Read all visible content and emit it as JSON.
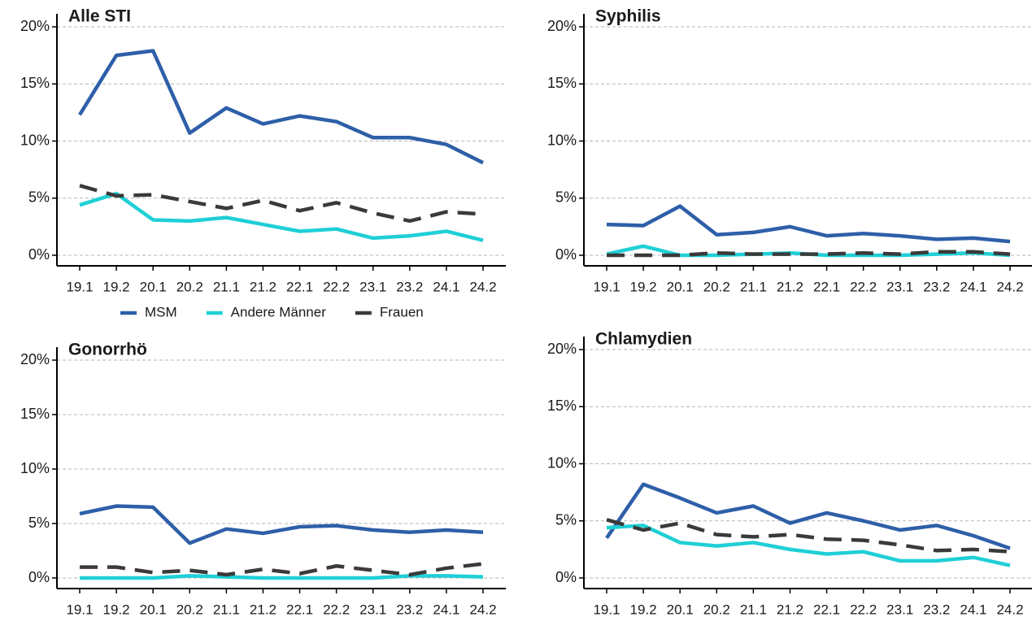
{
  "chart_data": [
    {
      "type": "line",
      "title": "Alle STI",
      "legend": "bottom",
      "categories": [
        "19.1",
        "19.2",
        "20.1",
        "20.2",
        "21.1",
        "21.2",
        "22.1",
        "22.2",
        "23.1",
        "23.2",
        "24.1",
        "24.2"
      ],
      "ylim": [
        0,
        20
      ],
      "yticks": [
        {
          "value": 0,
          "label": "0%"
        },
        {
          "value": 5,
          "label": "5%"
        },
        {
          "value": 10,
          "label": "10%"
        },
        {
          "value": 15,
          "label": "15%"
        },
        {
          "value": 20,
          "label": "20%"
        }
      ],
      "grid": true,
      "series": [
        {
          "name": "MSM",
          "color": "#2e5fa8",
          "line_style": "solid",
          "values": [
            12.3,
            17.5,
            17.9,
            10.7,
            12.9,
            11.5,
            12.2,
            11.7,
            10.3,
            10.3,
            9.7,
            8.1
          ]
        },
        {
          "name": "Andere Männer",
          "color": "#1fcfd6",
          "line_style": "solid",
          "values": [
            4.4,
            5.4,
            3.1,
            3.0,
            3.3,
            2.7,
            2.1,
            2.3,
            1.5,
            1.7,
            2.1,
            1.3
          ]
        },
        {
          "name": "Frauen",
          "color": "#3a3a3a",
          "line_style": "dashed",
          "values": [
            6.1,
            5.2,
            5.3,
            4.7,
            4.1,
            4.8,
            3.9,
            4.6,
            3.7,
            3.0,
            3.8,
            3.6
          ]
        }
      ]
    },
    {
      "type": "line",
      "title": "Syphilis",
      "categories": [
        "19.1",
        "19.2",
        "20.1",
        "20.2",
        "21.1",
        "21.2",
        "22.1",
        "22.2",
        "23.1",
        "23.2",
        "24.1",
        "24.2"
      ],
      "ylim": [
        0,
        20
      ],
      "yticks": [
        {
          "value": 0,
          "label": "0%"
        },
        {
          "value": 5,
          "label": "5%"
        },
        {
          "value": 10,
          "label": "10%"
        },
        {
          "value": 15,
          "label": "15%"
        },
        {
          "value": 20,
          "label": "20%"
        }
      ],
      "grid": true,
      "series": [
        {
          "name": "MSM",
          "color": "#2e5fa8",
          "line_style": "solid",
          "values": [
            2.7,
            2.6,
            4.3,
            1.8,
            2.0,
            2.5,
            1.7,
            1.9,
            1.7,
            1.4,
            1.5,
            1.2
          ]
        },
        {
          "name": "Andere Männer",
          "color": "#1fcfd6",
          "line_style": "solid",
          "values": [
            0.1,
            0.8,
            0.0,
            0.0,
            0.1,
            0.2,
            0.0,
            0.0,
            0.0,
            0.1,
            0.2,
            0.0
          ]
        },
        {
          "name": "Frauen",
          "color": "#3a3a3a",
          "line_style": "dashed",
          "values": [
            0.0,
            0.0,
            0.0,
            0.2,
            0.1,
            0.1,
            0.1,
            0.2,
            0.1,
            0.3,
            0.3,
            0.1
          ]
        }
      ]
    },
    {
      "type": "line",
      "title": "Gonorrhö",
      "categories": [
        "19.1",
        "19.2",
        "20.1",
        "20.2",
        "21.1",
        "21.2",
        "22.1",
        "22.2",
        "23.1",
        "23.2",
        "24.1",
        "24.2"
      ],
      "ylim": [
        0,
        20
      ],
      "yticks": [
        {
          "value": 0,
          "label": "0%"
        },
        {
          "value": 5,
          "label": "5%"
        },
        {
          "value": 10,
          "label": "10%"
        },
        {
          "value": 15,
          "label": "15%"
        },
        {
          "value": 20,
          "label": "20%"
        }
      ],
      "grid": true,
      "series": [
        {
          "name": "MSM",
          "color": "#2e5fa8",
          "line_style": "solid",
          "values": [
            5.9,
            6.6,
            6.5,
            3.2,
            4.5,
            4.1,
            4.7,
            4.8,
            4.4,
            4.2,
            4.4,
            4.2
          ]
        },
        {
          "name": "Andere Männer",
          "color": "#1fcfd6",
          "line_style": "solid",
          "values": [
            0.0,
            0.0,
            0.0,
            0.2,
            0.1,
            0.0,
            0.0,
            0.0,
            0.0,
            0.2,
            0.2,
            0.1
          ]
        },
        {
          "name": "Frauen",
          "color": "#3a3a3a",
          "line_style": "dashed",
          "values": [
            1.0,
            1.0,
            0.5,
            0.7,
            0.3,
            0.8,
            0.4,
            1.1,
            0.7,
            0.3,
            0.9,
            1.3
          ]
        }
      ]
    },
    {
      "type": "line",
      "title": "Chlamydien",
      "categories": [
        "19.1",
        "19.2",
        "20.1",
        "20.2",
        "21.1",
        "21.2",
        "22.1",
        "22.2",
        "23.1",
        "23.2",
        "24.1",
        "24.2"
      ],
      "ylim": [
        0,
        20
      ],
      "yticks": [
        {
          "value": 0,
          "label": "0%"
        },
        {
          "value": 5,
          "label": "5%"
        },
        {
          "value": 10,
          "label": "10%"
        },
        {
          "value": 15,
          "label": "15%"
        },
        {
          "value": 20,
          "label": "20%"
        }
      ],
      "grid": true,
      "series": [
        {
          "name": "MSM",
          "color": "#2e5fa8",
          "line_style": "solid",
          "values": [
            3.5,
            8.2,
            7.0,
            5.7,
            6.3,
            4.8,
            5.7,
            5.0,
            4.2,
            4.6,
            3.7,
            2.6
          ]
        },
        {
          "name": "Andere Männer",
          "color": "#1fcfd6",
          "line_style": "solid",
          "values": [
            4.4,
            4.6,
            3.1,
            2.8,
            3.1,
            2.5,
            2.1,
            2.3,
            1.5,
            1.5,
            1.8,
            1.1
          ]
        },
        {
          "name": "Frauen",
          "color": "#3a3a3a",
          "line_style": "dashed",
          "values": [
            5.1,
            4.2,
            4.8,
            3.8,
            3.6,
            3.8,
            3.4,
            3.3,
            2.9,
            2.4,
            2.5,
            2.3
          ]
        }
      ]
    }
  ]
}
